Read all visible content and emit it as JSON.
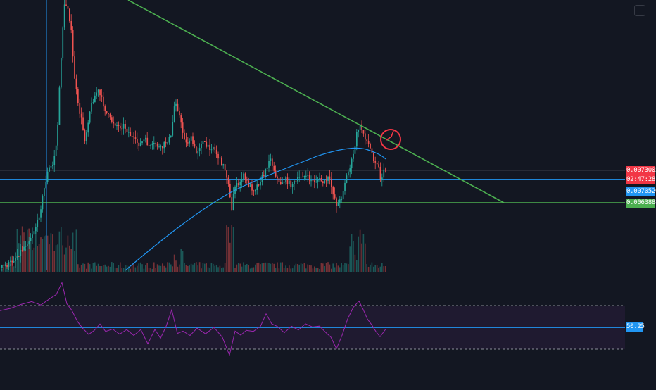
{
  "colors": {
    "background": "#131722",
    "up": "#26a69a",
    "down": "#ef5350",
    "ma": "#2196f3",
    "trendline": "#4caf50",
    "support_green": "#4caf50",
    "support_blue": "#2196f3",
    "rsi": "#9c27b0",
    "rsi_band": "#2a1d3d",
    "annotation": "#f23645",
    "last_price_tag": "#f23645",
    "current_line": "#b2b5be"
  },
  "price_axis": {
    "last_price": "0.00730050",
    "countdown": "02:47:28",
    "blue_level": "0.00705200",
    "green_level": "0.00638882"
  },
  "rsi_axis": {
    "value": "50.25"
  },
  "chart_data": [
    {
      "type": "candlestick",
      "series_name": "",
      "levels": [
        0.007052,
        0.00638882
      ],
      "last_price": 0.0073005,
      "trendline": "descending",
      "moving_average": true,
      "volume": true,
      "annotation": "circle near trendline test"
    },
    {
      "type": "line",
      "series_name": "",
      "value": 50.25,
      "bands": [
        30,
        70
      ]
    }
  ]
}
